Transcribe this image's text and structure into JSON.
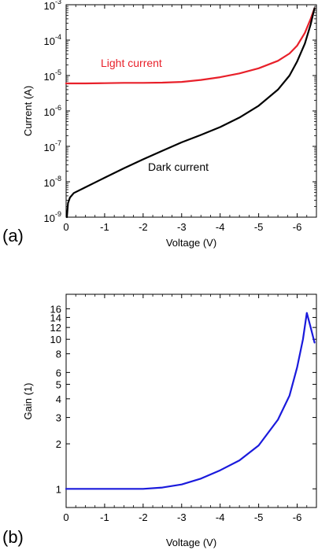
{
  "chart_data": [
    {
      "panel_label": "(a)",
      "type": "line",
      "xlabel": "Voltage (V)",
      "ylabel": "Current (A)",
      "xlim": [
        0,
        -6.5
      ],
      "yscale": "log",
      "ylim": [
        1e-09,
        0.001
      ],
      "x_ticks": [
        "0",
        "-1",
        "-2",
        "-3",
        "-4",
        "-5",
        "-6"
      ],
      "y_ticks": [
        {
          "base": "10",
          "exp": "-9"
        },
        {
          "base": "10",
          "exp": "-8"
        },
        {
          "base": "10",
          "exp": "-7"
        },
        {
          "base": "10",
          "exp": "-6"
        },
        {
          "base": "10",
          "exp": "-5"
        },
        {
          "base": "10",
          "exp": "-4"
        },
        {
          "base": "10",
          "exp": "-3"
        }
      ],
      "annotations": [
        {
          "text": "Light current",
          "color": "#e8202a"
        },
        {
          "text": "Dark current",
          "color": "#000000"
        }
      ],
      "series": [
        {
          "name": "Light current",
          "color": "#e8202a",
          "x": [
            0,
            -0.5,
            -1,
            -1.5,
            -2,
            -2.5,
            -3,
            -3.5,
            -4,
            -4.5,
            -5,
            -5.5,
            -5.8,
            -6.0,
            -6.2,
            -6.35,
            -6.45
          ],
          "y": [
            6e-06,
            6e-06,
            6.1e-06,
            6.2e-06,
            6.2e-06,
            6.3e-06,
            6.6e-06,
            7.5e-06,
            9e-06,
            1.15e-05,
            1.6e-05,
            2.6e-05,
            4.2e-05,
            7e-05,
            0.00016,
            0.0004,
            0.0008
          ]
        },
        {
          "name": "Dark current",
          "color": "#000000",
          "x": [
            -0.02,
            -0.05,
            -0.1,
            -0.2,
            -0.5,
            -1,
            -1.5,
            -2,
            -2.5,
            -3,
            -3.5,
            -4,
            -4.5,
            -5,
            -5.5,
            -5.8,
            -6.0,
            -6.2,
            -6.35,
            -6.45
          ],
          "y": [
            1e-09,
            2.5e-09,
            3.6e-09,
            4.8e-09,
            7e-09,
            1.3e-08,
            2.4e-08,
            4.3e-08,
            7.5e-08,
            1.3e-07,
            2.1e-07,
            3.5e-07,
            6.5e-07,
            1.4e-06,
            4e-06,
            1e-05,
            2.5e-05,
            8e-05,
            0.00028,
            0.0008
          ]
        }
      ]
    },
    {
      "panel_label": "(b)",
      "type": "line",
      "xlabel": "Voltage (V)",
      "ylabel": "Gain (1)",
      "xlim": [
        0,
        -6.5
      ],
      "yscale": "log",
      "ylim": [
        0.75,
        20
      ],
      "x_ticks": [
        "0",
        "-1",
        "-2",
        "-3",
        "-4",
        "-5",
        "-6"
      ],
      "y_ticks": [
        "1",
        "2",
        "3",
        "4",
        "5",
        "6",
        "8",
        "10",
        "12",
        "14",
        "16"
      ],
      "series": [
        {
          "name": "Gain",
          "color": "#1a1adc",
          "x": [
            0,
            -1,
            -2,
            -2.5,
            -3,
            -3.5,
            -4,
            -4.5,
            -5,
            -5.5,
            -5.8,
            -6.0,
            -6.15,
            -6.25,
            -6.35,
            -6.45
          ],
          "y": [
            1.0,
            1.0,
            1.0,
            1.02,
            1.07,
            1.17,
            1.33,
            1.55,
            1.95,
            2.9,
            4.2,
            6.5,
            10.0,
            15.0,
            12.0,
            9.5
          ]
        }
      ]
    }
  ]
}
